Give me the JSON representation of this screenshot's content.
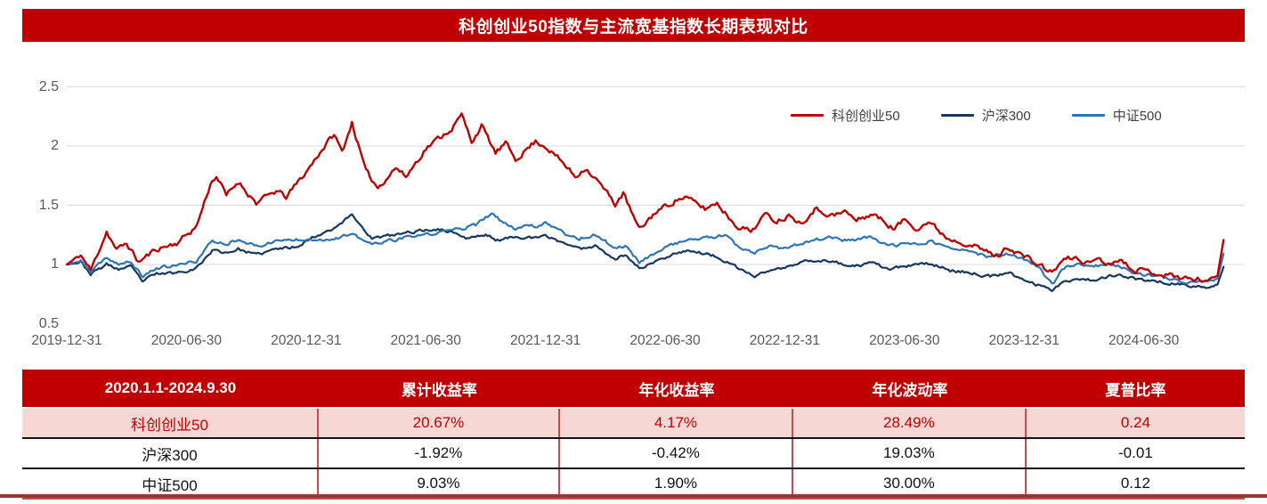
{
  "title": "科创创业50指数与主流宽基指数长期表现对比",
  "colors": {
    "accent_red": "#C00000",
    "navy": "#17375E",
    "light_blue": "#2E75B6",
    "highlight_row_bg": "#F6D7D4",
    "grid": "#DADADA",
    "axis_text": "#595959",
    "bottom_bar": "#953735"
  },
  "chart_data": {
    "type": "line",
    "title": "科创创业50指数与主流宽基指数长期表现对比",
    "xlabel": "",
    "ylabel": "",
    "ylim": [
      0.5,
      2.5
    ],
    "yticks": [
      0.5,
      1,
      1.5,
      2,
      2.5
    ],
    "grid": true,
    "legend_position": "top-right",
    "x_tick_labels": [
      "2019-12-31",
      "2020-06-30",
      "2020-12-31",
      "2021-06-30",
      "2021-12-31",
      "2022-06-30",
      "2022-12-31",
      "2023-06-30",
      "2023-12-31",
      "2024-06-30"
    ],
    "x_unit": "months_since_2019-12-31",
    "series": [
      {
        "name": "沪深300",
        "color": "#17375E",
        "final_value": 0.9808,
        "points": [
          [
            0,
            1.0
          ],
          [
            0.7,
            1.02
          ],
          [
            1.2,
            0.92
          ],
          [
            2,
            1.0
          ],
          [
            2.6,
            0.96
          ],
          [
            3.2,
            0.98
          ],
          [
            3.8,
            0.86
          ],
          [
            4.5,
            0.92
          ],
          [
            5.5,
            0.93
          ],
          [
            6.5,
            0.97
          ],
          [
            7.3,
            1.12
          ],
          [
            8,
            1.1
          ],
          [
            8.6,
            1.13
          ],
          [
            9.5,
            1.08
          ],
          [
            10.5,
            1.13
          ],
          [
            11.5,
            1.15
          ],
          [
            12,
            1.2
          ],
          [
            13,
            1.28
          ],
          [
            13.5,
            1.32
          ],
          [
            14.3,
            1.42
          ],
          [
            15.3,
            1.22
          ],
          [
            16.5,
            1.25
          ],
          [
            17.5,
            1.28
          ],
          [
            18.5,
            1.3
          ],
          [
            19.5,
            1.27
          ],
          [
            20,
            1.22
          ],
          [
            21,
            1.25
          ],
          [
            21.7,
            1.2
          ],
          [
            22.5,
            1.24
          ],
          [
            23.5,
            1.22
          ],
          [
            24,
            1.24
          ],
          [
            25,
            1.18
          ],
          [
            25.7,
            1.13
          ],
          [
            26.5,
            1.16
          ],
          [
            27.5,
            1.05
          ],
          [
            28,
            1.08
          ],
          [
            28.7,
            0.97
          ],
          [
            29.5,
            1.02
          ],
          [
            30.5,
            1.1
          ],
          [
            31.2,
            1.12
          ],
          [
            32.5,
            1.07
          ],
          [
            33.5,
            0.98
          ],
          [
            34.5,
            0.9
          ],
          [
            35.2,
            0.95
          ],
          [
            36,
            0.97
          ],
          [
            37.3,
            1.04
          ],
          [
            38.5,
            1.02
          ],
          [
            39.5,
            0.98
          ],
          [
            40.3,
            1.01
          ],
          [
            41.3,
            0.96
          ],
          [
            42.3,
            0.99
          ],
          [
            43.3,
            1.01
          ],
          [
            44.3,
            0.95
          ],
          [
            45.3,
            0.93
          ],
          [
            46.3,
            0.9
          ],
          [
            47.3,
            0.92
          ],
          [
            48,
            0.87
          ],
          [
            48.8,
            0.82
          ],
          [
            49.4,
            0.79
          ],
          [
            50,
            0.86
          ],
          [
            50.8,
            0.88
          ],
          [
            51.5,
            0.87
          ],
          [
            52.5,
            0.91
          ],
          [
            53.5,
            0.88
          ],
          [
            54.5,
            0.86
          ],
          [
            55.5,
            0.84
          ],
          [
            56.5,
            0.81
          ],
          [
            57.4,
            0.815
          ],
          [
            57.7,
            0.83
          ],
          [
            58,
            0.9808
          ]
        ]
      },
      {
        "name": "中证500",
        "color": "#2E75B6",
        "final_value": 1.0903,
        "points": [
          [
            0,
            1.0
          ],
          [
            0.7,
            1.03
          ],
          [
            1.2,
            0.93
          ],
          [
            2,
            1.06
          ],
          [
            2.6,
            1.0
          ],
          [
            3.2,
            1.02
          ],
          [
            3.8,
            0.9
          ],
          [
            4.5,
            0.97
          ],
          [
            5.5,
            0.99
          ],
          [
            6.5,
            1.03
          ],
          [
            7.3,
            1.2
          ],
          [
            8,
            1.17
          ],
          [
            8.6,
            1.22
          ],
          [
            9.5,
            1.15
          ],
          [
            10.5,
            1.2
          ],
          [
            11.5,
            1.21
          ],
          [
            12,
            1.22
          ],
          [
            13,
            1.21
          ],
          [
            14.3,
            1.25
          ],
          [
            15.3,
            1.17
          ],
          [
            16.5,
            1.21
          ],
          [
            17.5,
            1.24
          ],
          [
            18.5,
            1.26
          ],
          [
            19.5,
            1.3
          ],
          [
            20.5,
            1.33
          ],
          [
            21.3,
            1.43
          ],
          [
            21.8,
            1.36
          ],
          [
            22.5,
            1.3
          ],
          [
            23,
            1.34
          ],
          [
            23.6,
            1.32
          ],
          [
            24,
            1.36
          ],
          [
            25,
            1.26
          ],
          [
            25.7,
            1.22
          ],
          [
            26.5,
            1.25
          ],
          [
            27.5,
            1.14
          ],
          [
            28,
            1.16
          ],
          [
            28.7,
            1.02
          ],
          [
            29.5,
            1.1
          ],
          [
            30.5,
            1.18
          ],
          [
            31.3,
            1.21
          ],
          [
            32.5,
            1.23
          ],
          [
            33,
            1.25
          ],
          [
            33.8,
            1.12
          ],
          [
            34.5,
            1.1
          ],
          [
            35.2,
            1.15
          ],
          [
            36,
            1.13
          ],
          [
            37.3,
            1.2
          ],
          [
            38.3,
            1.23
          ],
          [
            39.3,
            1.2
          ],
          [
            40.3,
            1.23
          ],
          [
            41.3,
            1.16
          ],
          [
            42.3,
            1.17
          ],
          [
            43.3,
            1.2
          ],
          [
            44.3,
            1.13
          ],
          [
            45.3,
            1.11
          ],
          [
            46.3,
            1.06
          ],
          [
            47.3,
            1.09
          ],
          [
            48,
            1.04
          ],
          [
            48.8,
            0.96
          ],
          [
            49.45,
            0.82
          ],
          [
            49.9,
            0.97
          ],
          [
            50.8,
            1.0
          ],
          [
            51.5,
            0.98
          ],
          [
            52.5,
            1.0
          ],
          [
            53.5,
            0.93
          ],
          [
            54.5,
            0.91
          ],
          [
            55.5,
            0.87
          ],
          [
            56.5,
            0.85
          ],
          [
            57.4,
            0.855
          ],
          [
            57.7,
            0.88
          ],
          [
            58,
            1.0903
          ]
        ]
      },
      {
        "name": "科创创业50",
        "color": "#C00000",
        "final_value": 1.2067,
        "points": [
          [
            0,
            1.0
          ],
          [
            0.7,
            1.08
          ],
          [
            1.2,
            0.95
          ],
          [
            2,
            1.28
          ],
          [
            2.5,
            1.12
          ],
          [
            3,
            1.18
          ],
          [
            3.6,
            1.02
          ],
          [
            4.5,
            1.13
          ],
          [
            5.5,
            1.18
          ],
          [
            6.5,
            1.32
          ],
          [
            7.2,
            1.68
          ],
          [
            7.5,
            1.75
          ],
          [
            8,
            1.58
          ],
          [
            8.6,
            1.7
          ],
          [
            9.5,
            1.52
          ],
          [
            10.5,
            1.62
          ],
          [
            11,
            1.57
          ],
          [
            12,
            1.78
          ],
          [
            12.7,
            1.95
          ],
          [
            13.4,
            2.1
          ],
          [
            13.8,
            1.95
          ],
          [
            14.3,
            2.2
          ],
          [
            15,
            1.78
          ],
          [
            15.6,
            1.65
          ],
          [
            16.5,
            1.82
          ],
          [
            17,
            1.74
          ],
          [
            18,
            1.98
          ],
          [
            18.6,
            2.06
          ],
          [
            19.3,
            2.15
          ],
          [
            19.8,
            2.26
          ],
          [
            20.3,
            2.04
          ],
          [
            20.8,
            2.17
          ],
          [
            21.5,
            1.94
          ],
          [
            22,
            2.02
          ],
          [
            22.5,
            1.89
          ],
          [
            23.5,
            2.04
          ],
          [
            24,
            2.0
          ],
          [
            24.8,
            1.87
          ],
          [
            25.5,
            1.74
          ],
          [
            26,
            1.82
          ],
          [
            26.6,
            1.71
          ],
          [
            27.5,
            1.51
          ],
          [
            27.9,
            1.6
          ],
          [
            28.7,
            1.29
          ],
          [
            29.5,
            1.44
          ],
          [
            30.5,
            1.54
          ],
          [
            31,
            1.57
          ],
          [
            32,
            1.47
          ],
          [
            32.6,
            1.52
          ],
          [
            33.5,
            1.34
          ],
          [
            34.3,
            1.28
          ],
          [
            35,
            1.42
          ],
          [
            35.6,
            1.37
          ],
          [
            36.3,
            1.42
          ],
          [
            36.8,
            1.35
          ],
          [
            37.5,
            1.47
          ],
          [
            38.5,
            1.41
          ],
          [
            39,
            1.45
          ],
          [
            39.6,
            1.37
          ],
          [
            40.4,
            1.43
          ],
          [
            41.5,
            1.3
          ],
          [
            42,
            1.38
          ],
          [
            42.6,
            1.31
          ],
          [
            43.2,
            1.36
          ],
          [
            44.2,
            1.22
          ],
          [
            45.2,
            1.18
          ],
          [
            46.2,
            1.1
          ],
          [
            46.7,
            1.07
          ],
          [
            47.2,
            1.15
          ],
          [
            48,
            1.07
          ],
          [
            48.8,
            0.99
          ],
          [
            49.4,
            0.93
          ],
          [
            49.9,
            1.03
          ],
          [
            50.5,
            1.06
          ],
          [
            51.2,
            1.01
          ],
          [
            51.7,
            1.06
          ],
          [
            52.2,
            1.0
          ],
          [
            52.7,
            1.05
          ],
          [
            53.6,
            0.96
          ],
          [
            54.6,
            0.93
          ],
          [
            55.6,
            0.9
          ],
          [
            56.6,
            0.87
          ],
          [
            57.4,
            0.875
          ],
          [
            57.7,
            0.91
          ],
          [
            58,
            1.2067
          ]
        ]
      }
    ],
    "legend_order": [
      "科创创业50",
      "沪深300",
      "中证500"
    ]
  },
  "table": {
    "header": [
      "2020.1.1-2024.9.30",
      "累计收益率",
      "年化收益率",
      "年化波动率",
      "夏普比率"
    ],
    "rows": [
      {
        "name": "科创创业50",
        "values": [
          "20.67%",
          "4.17%",
          "28.49%",
          "0.24"
        ],
        "highlight": true
      },
      {
        "name": "沪深300",
        "values": [
          "-1.92%",
          "-0.42%",
          "19.03%",
          "-0.01"
        ],
        "highlight": false
      },
      {
        "name": "中证500",
        "values": [
          "9.03%",
          "1.90%",
          "30.00%",
          "0.12"
        ],
        "highlight": false
      }
    ]
  }
}
